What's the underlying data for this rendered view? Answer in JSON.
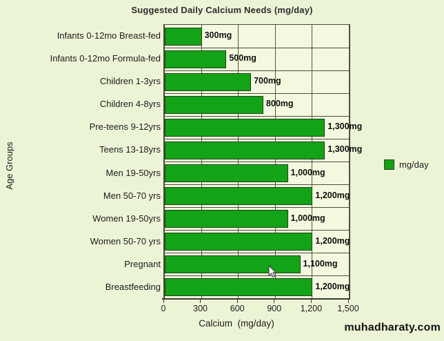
{
  "page": {
    "watermark": "muhadharaty.com"
  },
  "chart_data": {
    "type": "bar",
    "orientation": "horizontal",
    "title": "Suggested Daily Calcium Needs (mg/day)",
    "xlabel": "Calcium  (mg/day)",
    "ylabel": "Age Groups",
    "categories": [
      "Infants 0-12mo Breast-fed",
      "Infants 0-12mo Formula-fed",
      "Children 1-3yrs",
      "Children 4-8yrs",
      "Pre-teens 9-12yrs",
      "Teens 13-18yrs",
      "Men 19-50yrs",
      "Men 50-70 yrs",
      "Women 19-50yrs",
      "Women 50-70 yrs",
      "Pregnant",
      "Breastfeeding"
    ],
    "values": [
      300,
      500,
      700,
      800,
      1300,
      1300,
      1000,
      1200,
      1000,
      1200,
      1100,
      1200
    ],
    "value_labels": [
      "300mg",
      "500mg",
      "700mg",
      "800mg",
      "1,300mg",
      "1,300mg",
      "1,000mg",
      "1,200mg",
      "1,000mg",
      "1,200mg",
      "1,100mg",
      "1,200mg"
    ],
    "xlim": [
      0,
      1500
    ],
    "x_ticks": [
      {
        "value": 0,
        "label": "0"
      },
      {
        "value": 300,
        "label": "300"
      },
      {
        "value": 600,
        "label": "600"
      },
      {
        "value": 900,
        "label": "900"
      },
      {
        "value": 1200,
        "label": "1,200"
      },
      {
        "value": 1500,
        "label": "1,500"
      }
    ],
    "grid": true,
    "legend": {
      "label": "mg/day",
      "position": "right-middle"
    },
    "colors": {
      "bar": "#12a316",
      "bar_border": "#23411f",
      "page_background": "#ecf4d6",
      "plot_background": "#f3f9de",
      "gridline": "#55553f",
      "text": "#1c1c1c"
    }
  }
}
